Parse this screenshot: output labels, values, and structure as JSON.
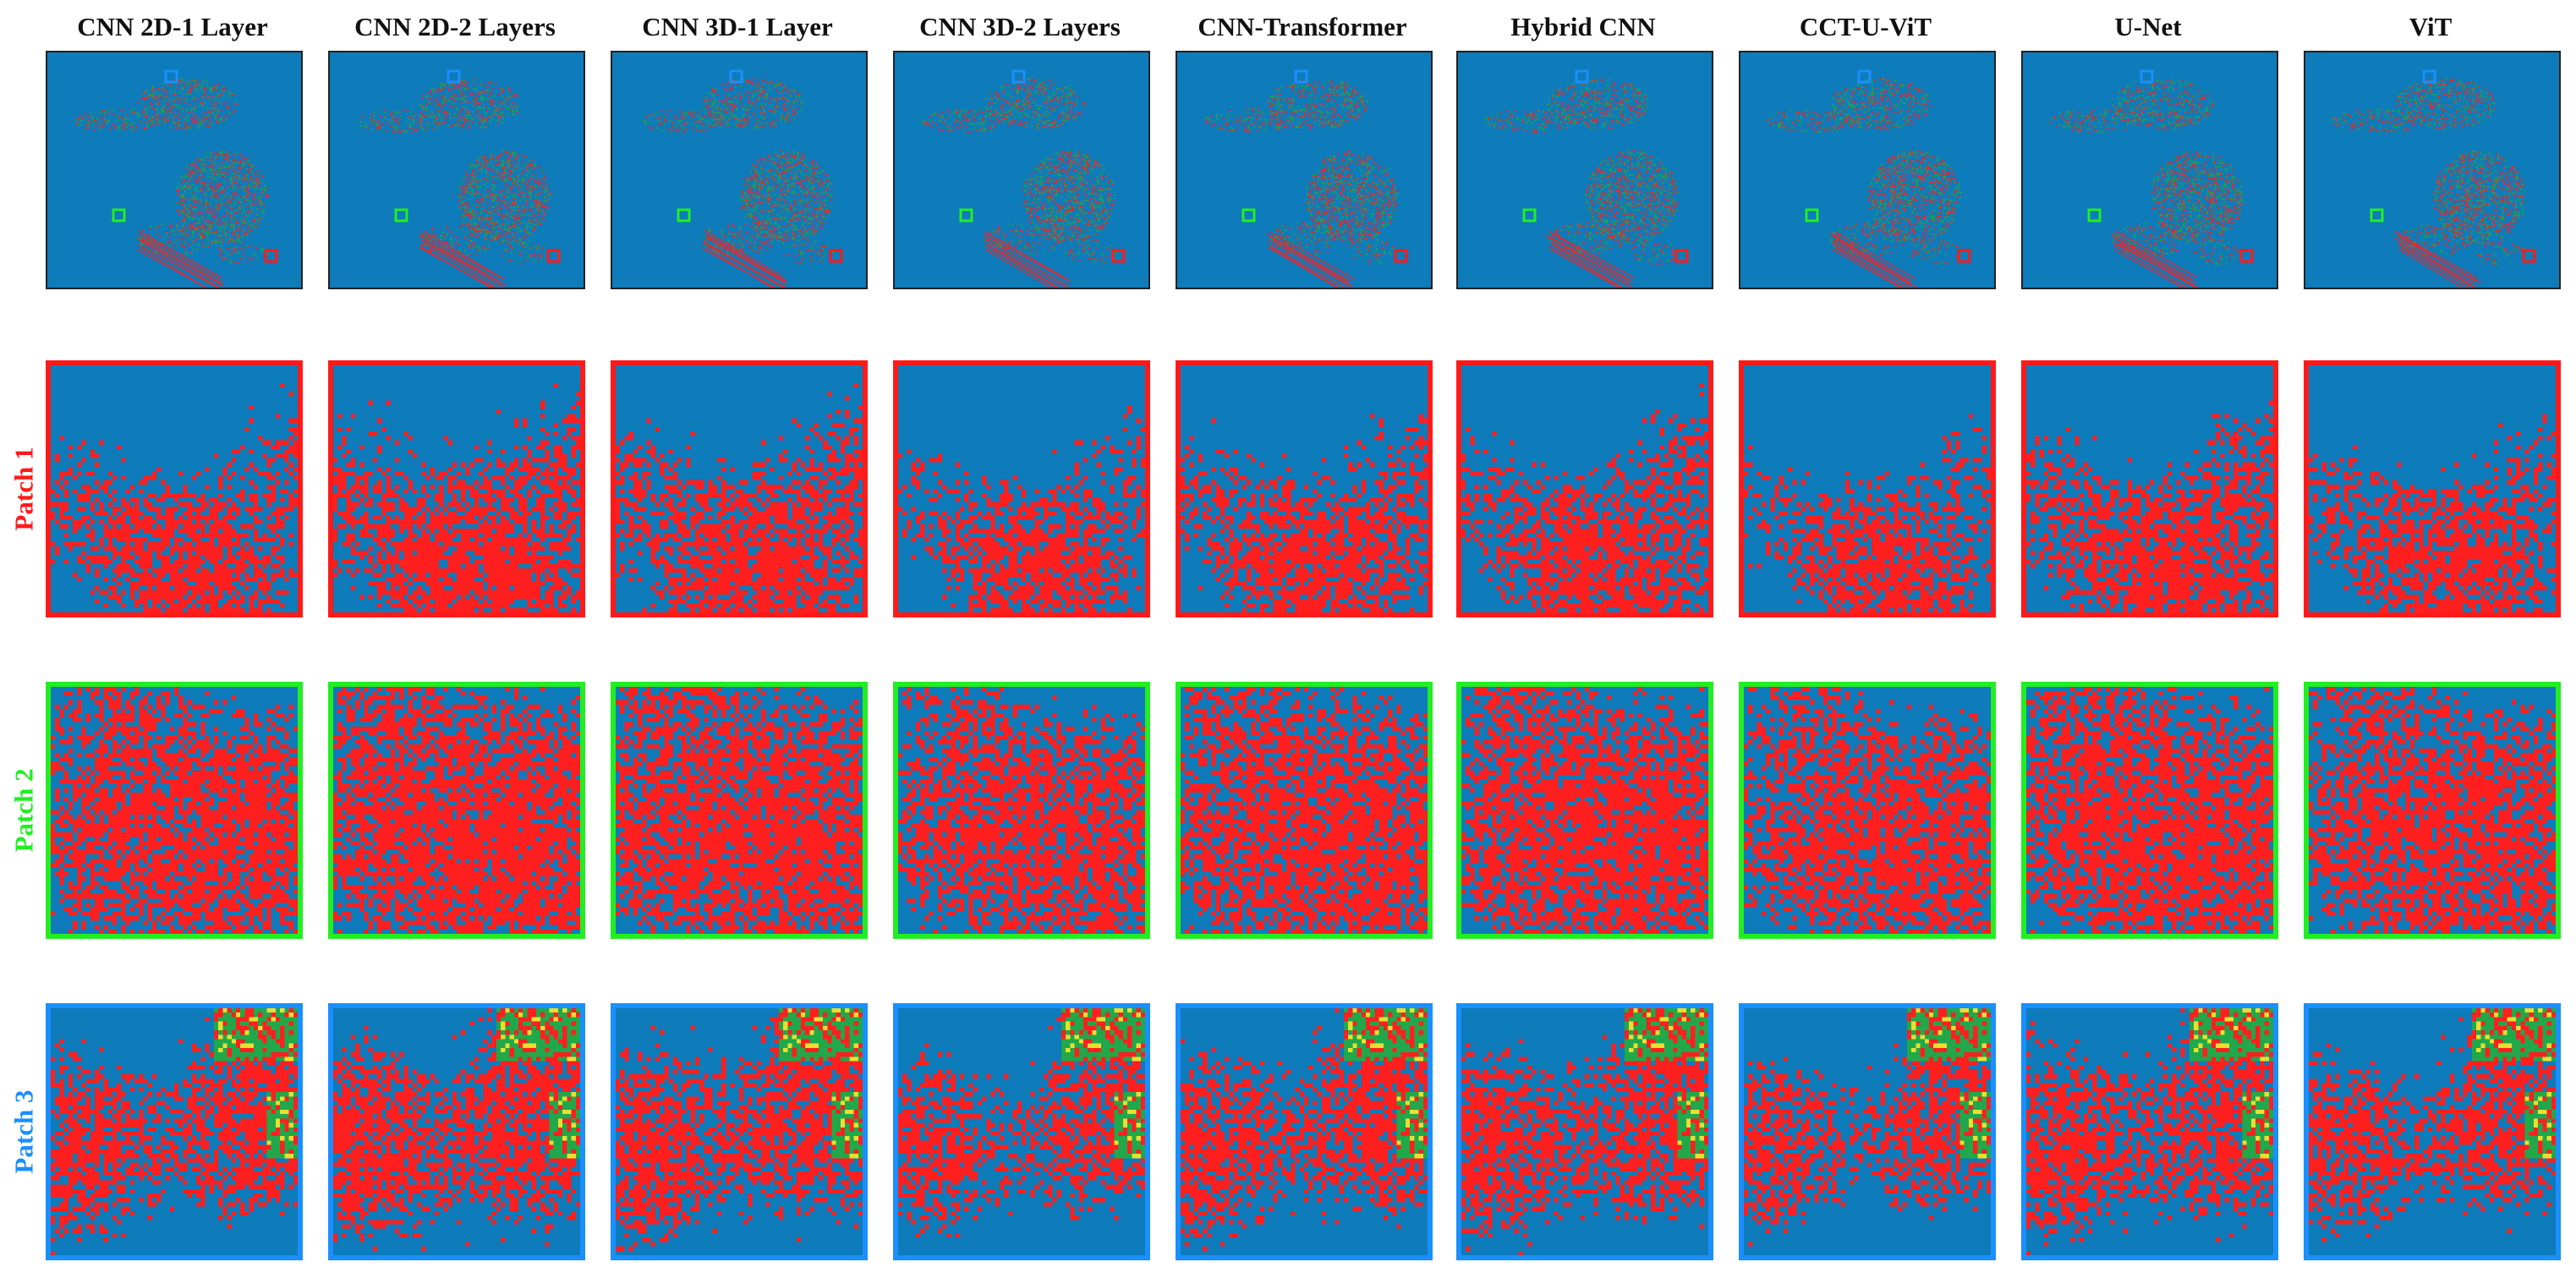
{
  "methods": [
    {
      "name": "CNN 2D-1 Layer",
      "density": 0.22
    },
    {
      "name": "CNN 2D-2 Layers",
      "density": 0.36
    },
    {
      "name": "CNN 3D-1 Layer",
      "density": 0.32
    },
    {
      "name": "CNN 3D-2 Layers",
      "density": 0.12
    },
    {
      "name": "CNN-Transformer",
      "density": 0.24
    },
    {
      "name": "Hybrid CNN",
      "density": 0.26
    },
    {
      "name": "CCT-U-ViT",
      "density": 0.06
    },
    {
      "name": "U-Net",
      "density": 0.28
    },
    {
      "name": "ViT",
      "density": 0.17
    }
  ],
  "rows": [
    {
      "label": "Patch 1",
      "color": "#ff1a1a"
    },
    {
      "label": "Patch 2",
      "color": "#22ee22"
    },
    {
      "label": "Patch 3",
      "color": "#1a8fff"
    }
  ],
  "colors": {
    "background": "#0e7bba",
    "class_red": "#ff1f1f",
    "class_green": "#20a84a",
    "class_yellow": "#e8e030"
  }
}
